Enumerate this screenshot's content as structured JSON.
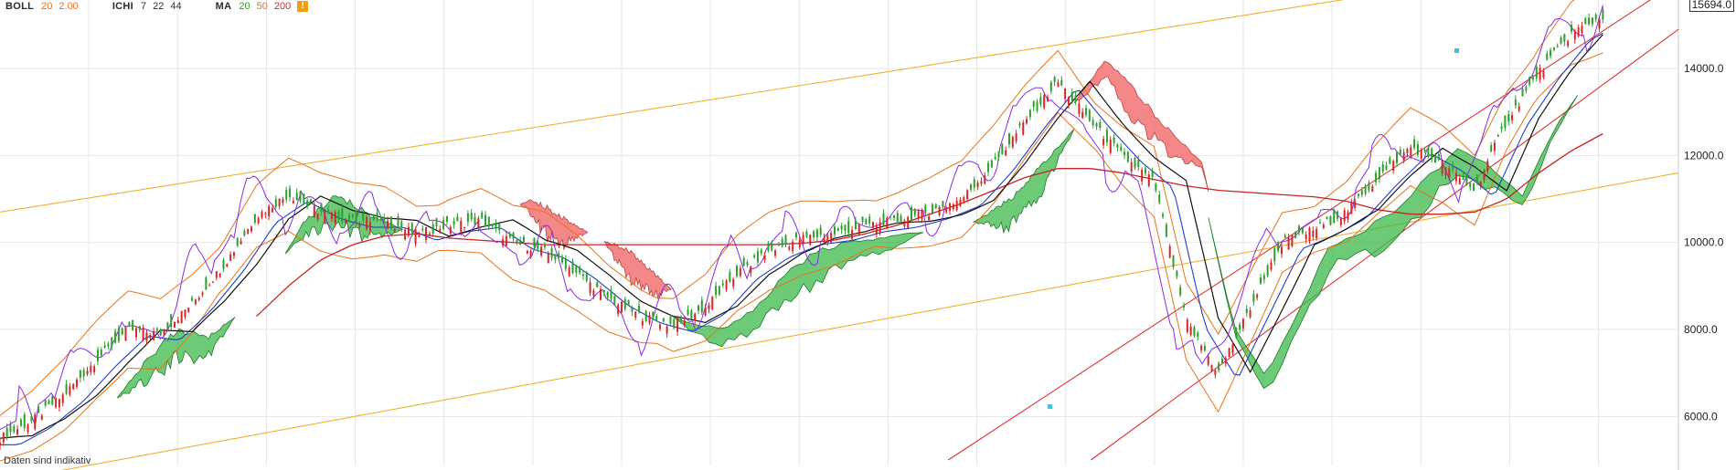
{
  "legend": {
    "boll": {
      "name": "BOLL",
      "p1": "20",
      "p2": "2.00",
      "p1_color": "#e8731a",
      "p2_color": "#e8731a"
    },
    "ichi": {
      "name": "ICHI",
      "p1": "7",
      "p2": "22",
      "p3": "44"
    },
    "ma": {
      "name": "MA",
      "p1": "20",
      "p2": "50",
      "p3": "200",
      "p1_color": "#2ea02e",
      "p2_color": "#e8731a",
      "p3_color": "#d62728"
    },
    "warning_icon": "warning-icon"
  },
  "footnote": "Daten sind indikativ",
  "last_price_label": "15694.0",
  "colors": {
    "grid": "#e6e6e6",
    "candle_up": "#2ca02c",
    "candle_down": "#d62728",
    "cloud_bull": "#3cb94a",
    "cloud_bear": "#f06060",
    "boll": "#e8731a",
    "ma200": "#cc2222",
    "blue_line": "#1f3fcc",
    "purple_line": "#8a2be2",
    "black_line": "#111111",
    "channel_orange": "#f0b030",
    "channel_red": "#e03030",
    "handle": "#33c4f0"
  },
  "chart_data": {
    "type": "line",
    "title": "",
    "xlabel": "",
    "ylabel": "",
    "ylim": [
      5000,
      15700
    ],
    "y_ticks": [
      "6000.0",
      "8000.0",
      "10000.0",
      "12000.0",
      "14000.0"
    ],
    "y_tick_values": [
      6000,
      8000,
      10000,
      12000,
      14000
    ],
    "grid": true,
    "legend_position": "top-left",
    "price_series": {
      "name": "",
      "values": [
        5500,
        5900,
        6500,
        7300,
        8000,
        7900,
        8600,
        9500,
        10600,
        11100,
        10700,
        10500,
        10500,
        10200,
        10400,
        10500,
        10000,
        9800,
        9300,
        8700,
        8300,
        8100,
        8500,
        9300,
        9800,
        10100,
        10200,
        10400,
        10500,
        10700,
        11000,
        11800,
        12800,
        13700,
        12800,
        12000,
        11400,
        8200,
        7000,
        8500,
        10000,
        10300,
        10700,
        11500,
        12200,
        11800,
        11200,
        12800,
        13900,
        14800,
        15200
      ]
    },
    "ma200_values": [
      null,
      null,
      null,
      null,
      null,
      null,
      null,
      null,
      8300,
      9000,
      9600,
      9950,
      10150,
      10200,
      10100,
      10050,
      10000,
      9950,
      9950,
      9950,
      9950,
      9950,
      9950,
      9950,
      9950,
      9980,
      10050,
      10200,
      10400,
      10650,
      10900,
      11200,
      11500,
      11700,
      11700,
      11600,
      11450,
      11300,
      11200,
      11150,
      11100,
      11050,
      10950,
      10750,
      10650,
      10650,
      10700,
      11000,
      11600,
      12100,
      12500
    ],
    "cloud_segments": [
      {
        "sentiment": "bullish",
        "x0": 0.07,
        "x1": 0.14
      },
      {
        "sentiment": "bullish",
        "x0": 0.17,
        "x1": 0.24
      },
      {
        "sentiment": "bearish",
        "x0": 0.31,
        "x1": 0.35
      },
      {
        "sentiment": "bearish",
        "x0": 0.36,
        "x1": 0.4
      },
      {
        "sentiment": "bullish",
        "x0": 0.4,
        "x1": 0.55
      },
      {
        "sentiment": "bullish",
        "x0": 0.58,
        "x1": 0.64
      },
      {
        "sentiment": "bearish",
        "x0": 0.64,
        "x1": 0.72
      },
      {
        "sentiment": "bullish",
        "x0": 0.72,
        "x1": 0.94
      }
    ],
    "trend_channels": [
      {
        "name": "",
        "color": "orange",
        "from": [
          0,
          10700
        ],
        "to": [
          1,
          16800
        ]
      },
      {
        "name": "",
        "color": "orange",
        "from": [
          0,
          4500
        ],
        "to": [
          1,
          11600
        ]
      },
      {
        "name": "",
        "color": "red",
        "from": [
          0.565,
          5000
        ],
        "to": [
          1,
          16000
        ]
      },
      {
        "name": "",
        "color": "red",
        "from": [
          0.65,
          5000
        ],
        "to": [
          1,
          14900
        ]
      }
    ]
  }
}
